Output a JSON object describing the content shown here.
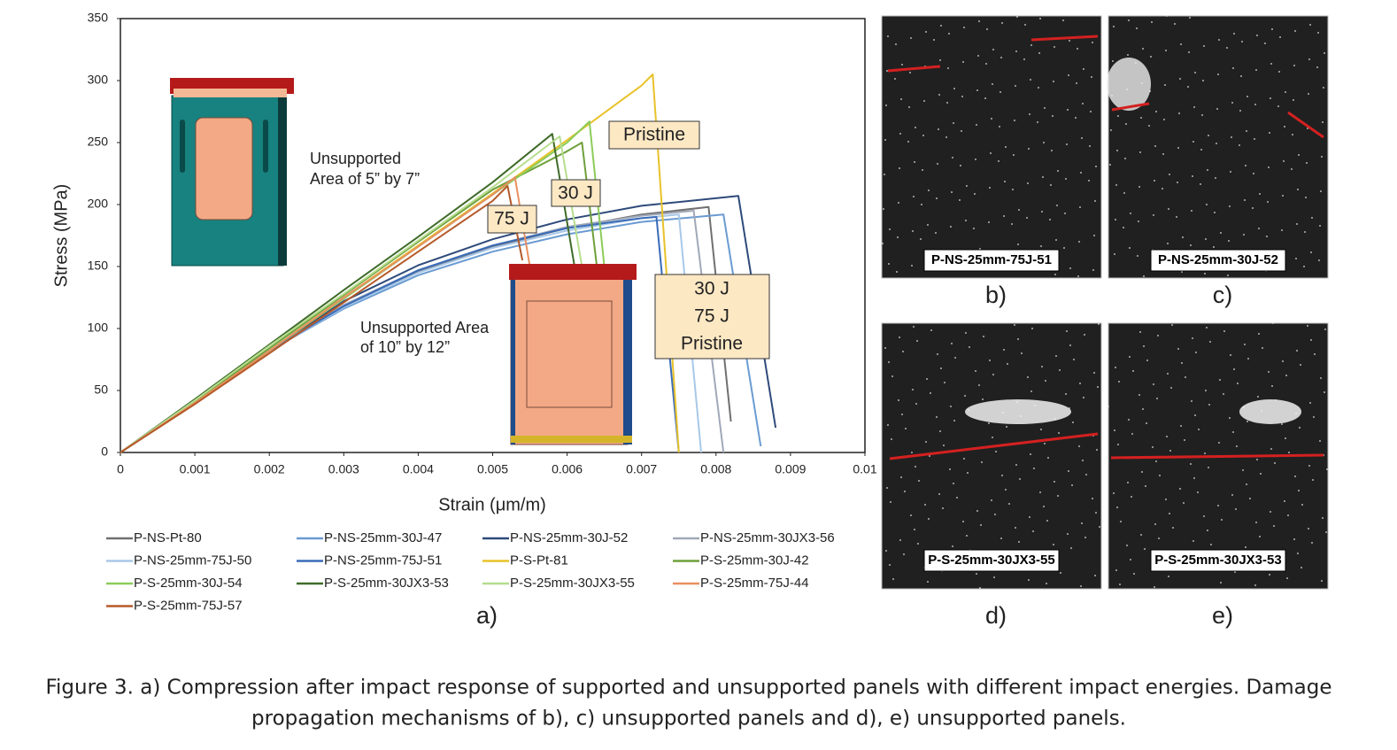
{
  "chart_data": {
    "type": "line",
    "x_label": "Strain (μm/m)",
    "y_label": "Stress (MPa)",
    "xlim": [
      0,
      0.01
    ],
    "xticks": [
      0,
      0.001,
      0.002,
      0.003,
      0.004,
      0.005,
      0.006,
      0.007,
      0.008,
      0.009,
      0.01
    ],
    "ylim": [
      0,
      350
    ],
    "yticks": [
      0,
      50,
      100,
      150,
      200,
      250,
      300,
      350
    ],
    "grid": false,
    "series": [
      {
        "name": "P-NS-Pt-80",
        "color": "#707070",
        "x": [
          0,
          0.001,
          0.002,
          0.003,
          0.004,
          0.005,
          0.006,
          0.007,
          0.0079,
          0.0082
        ],
        "values": [
          0,
          40,
          82,
          118,
          146,
          166,
          181,
          192,
          198,
          25
        ]
      },
      {
        "name": "P-NS-25mm-30J-47",
        "color": "#6a9bd1",
        "x": [
          0,
          0.001,
          0.002,
          0.003,
          0.004,
          0.005,
          0.006,
          0.007,
          0.0081,
          0.0086
        ],
        "values": [
          0,
          40,
          82,
          116,
          143,
          162,
          176,
          186,
          192,
          5
        ]
      },
      {
        "name": "P-NS-25mm-30J-52",
        "color": "#2e4a7a",
        "x": [
          0,
          0.001,
          0.002,
          0.003,
          0.004,
          0.005,
          0.006,
          0.007,
          0.0083,
          0.0088
        ],
        "values": [
          0,
          40,
          82,
          122,
          151,
          172,
          188,
          199,
          207,
          20
        ]
      },
      {
        "name": "P-NS-25mm-30JX3-56",
        "color": "#a0a8b8",
        "x": [
          0,
          0.001,
          0.002,
          0.003,
          0.004,
          0.005,
          0.006,
          0.007,
          0.0077,
          0.0081
        ],
        "values": [
          0,
          40,
          82,
          119,
          147,
          167,
          182,
          191,
          195,
          0
        ]
      },
      {
        "name": "P-NS-25mm-75J-50",
        "color": "#a8c8e8",
        "x": [
          0,
          0.001,
          0.002,
          0.003,
          0.004,
          0.005,
          0.006,
          0.007,
          0.0075,
          0.0078
        ],
        "values": [
          0,
          40,
          82,
          117,
          145,
          165,
          179,
          189,
          192,
          0
        ]
      },
      {
        "name": "P-NS-25mm-75J-51",
        "color": "#3a6cb8",
        "x": [
          0,
          0.001,
          0.002,
          0.003,
          0.004,
          0.005,
          0.006,
          0.007,
          0.0072,
          0.0075
        ],
        "values": [
          0,
          40,
          82,
          118,
          147,
          167,
          181,
          189,
          190,
          0
        ]
      },
      {
        "name": "P-S-Pt-81",
        "color": "#e8c22a",
        "x": [
          0,
          0.001,
          0.002,
          0.003,
          0.004,
          0.005,
          0.006,
          0.007,
          0.00715,
          0.0075
        ],
        "values": [
          0,
          40,
          82,
          125,
          167,
          209,
          252,
          296,
          305,
          0
        ]
      },
      {
        "name": "P-S-25mm-30J-42",
        "color": "#6fa03c",
        "x": [
          0,
          0.001,
          0.002,
          0.003,
          0.004,
          0.005,
          0.006,
          0.0062,
          0.0064
        ],
        "values": [
          0,
          41,
          84,
          127,
          170,
          212,
          243,
          250,
          150
        ]
      },
      {
        "name": "P-S-25mm-30J-54",
        "color": "#8ccc5a",
        "x": [
          0,
          0.001,
          0.002,
          0.003,
          0.004,
          0.005,
          0.006,
          0.0063,
          0.0065
        ],
        "values": [
          0,
          40,
          82,
          124,
          166,
          208,
          250,
          267,
          150
        ]
      },
      {
        "name": "P-S-25mm-30JX3-53",
        "color": "#3f6b2a",
        "x": [
          0,
          0.001,
          0.002,
          0.003,
          0.004,
          0.005,
          0.0058,
          0.0061
        ],
        "values": [
          0,
          43,
          87,
          131,
          174,
          218,
          257,
          150
        ]
      },
      {
        "name": "P-S-25mm-30JX3-55",
        "color": "#b5dd8e",
        "x": [
          0,
          0.001,
          0.002,
          0.003,
          0.004,
          0.005,
          0.0059,
          0.0062
        ],
        "values": [
          0,
          42,
          86,
          128,
          171,
          214,
          255,
          150
        ]
      },
      {
        "name": "P-S-25mm-75J-44",
        "color": "#e89060",
        "x": [
          0,
          0.001,
          0.002,
          0.003,
          0.004,
          0.005,
          0.0053,
          0.0055
        ],
        "values": [
          0,
          40,
          82,
          125,
          166,
          208,
          222,
          150
        ]
      },
      {
        "name": "P-S-25mm-75J-57",
        "color": "#b55a2a",
        "x": [
          0,
          0.001,
          0.002,
          0.003,
          0.004,
          0.005,
          0.0052,
          0.0054
        ],
        "values": [
          0,
          39,
          80,
          121,
          162,
          203,
          215,
          155
        ]
      }
    ],
    "annotations": {
      "pristine": "Pristine",
      "j30": "30 J",
      "j75": "75 J",
      "combined": [
        "30 J",
        "75 J",
        "Pristine"
      ],
      "small_area": [
        "Unsupported",
        "Area of 5” by 7”"
      ],
      "large_area": [
        "Unsupported Area",
        "of 10” by 12”"
      ]
    },
    "panel_label": "a)"
  },
  "photos": [
    {
      "label": "b)",
      "specimen": "P-NS-25mm-75J-51"
    },
    {
      "label": "c)",
      "specimen": "P-NS-25mm-30J-52"
    },
    {
      "label": "d)",
      "specimen": "P-S-25mm-30JX3-55"
    },
    {
      "label": "e)",
      "specimen": "P-S-25mm-30JX3-53"
    }
  ],
  "caption": [
    "Figure 3. a) Compression after impact response of supported and unsupported panels with different impact energies. Damage",
    "propagation mechanisms of b), c) unsupported panels and d), e) unsupported panels."
  ]
}
